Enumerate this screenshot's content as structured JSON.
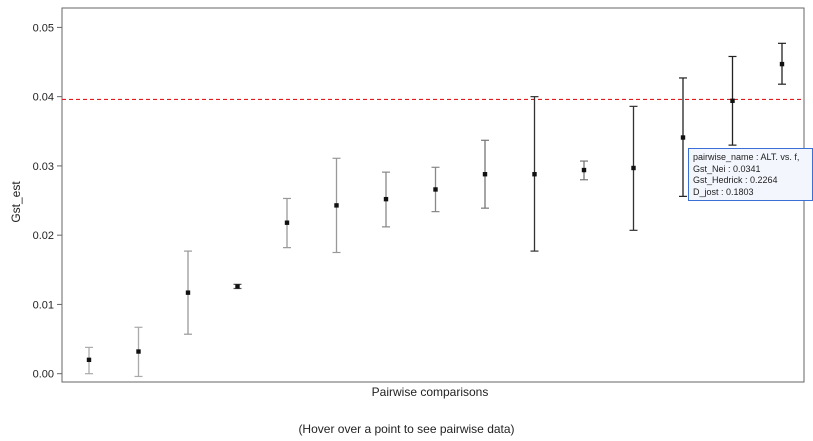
{
  "chart_data": {
    "type": "scatter",
    "xlabel": "Pairwise comparisons",
    "ylabel": "Gst_est",
    "ylim": [
      -0.0012,
      0.0528
    ],
    "y_ticks": [
      "0.00",
      "0.01",
      "0.02",
      "0.03",
      "0.04",
      "0.05"
    ],
    "reference_line": {
      "y": 0.0396,
      "color": "#e41a1c",
      "style": "dashed"
    },
    "grid": false,
    "points": [
      {
        "x": 1,
        "y": 0.002,
        "lo": 0.0,
        "hi": 0.0038,
        "color": "#aaaaaa"
      },
      {
        "x": 2,
        "y": 0.0032,
        "lo": -0.0004,
        "hi": 0.0067,
        "color": "#aaaaaa"
      },
      {
        "x": 3,
        "y": 0.0117,
        "lo": 0.0057,
        "hi": 0.0177,
        "color": "#999999"
      },
      {
        "x": 4,
        "y": 0.0126,
        "lo": 0.0123,
        "hi": 0.0129,
        "color": "#555555"
      },
      {
        "x": 5,
        "y": 0.0218,
        "lo": 0.0182,
        "hi": 0.0253,
        "color": "#999999"
      },
      {
        "x": 6,
        "y": 0.0243,
        "lo": 0.0175,
        "hi": 0.0311,
        "color": "#999999"
      },
      {
        "x": 7,
        "y": 0.0252,
        "lo": 0.0212,
        "hi": 0.0291,
        "color": "#888888"
      },
      {
        "x": 8,
        "y": 0.0266,
        "lo": 0.0234,
        "hi": 0.0298,
        "color": "#888888"
      },
      {
        "x": 9,
        "y": 0.0288,
        "lo": 0.0239,
        "hi": 0.0337,
        "color": "#777777"
      },
      {
        "x": 10,
        "y": 0.0288,
        "lo": 0.0177,
        "hi": 0.04,
        "color": "#333333"
      },
      {
        "x": 11,
        "y": 0.0294,
        "lo": 0.028,
        "hi": 0.0307,
        "color": "#777777"
      },
      {
        "x": 12,
        "y": 0.0297,
        "lo": 0.0207,
        "hi": 0.0386,
        "color": "#333333"
      },
      {
        "x": 13,
        "y": 0.0341,
        "lo": 0.0256,
        "hi": 0.0427,
        "color": "#222222"
      },
      {
        "x": 14,
        "y": 0.0394,
        "lo": 0.033,
        "hi": 0.0458,
        "color": "#222222"
      },
      {
        "x": 15,
        "y": 0.0447,
        "lo": 0.0418,
        "hi": 0.0477,
        "color": "#222222"
      }
    ]
  },
  "caption": "(Hover over a point to see pairwise data)",
  "tooltip": {
    "line1": "pairwise_name : ALT. vs. f,",
    "line2": "Gst_Nei : 0.0341",
    "line3": "Gst_Hedrick : 0.2264",
    "line4": "D_jost : 0.1803"
  }
}
